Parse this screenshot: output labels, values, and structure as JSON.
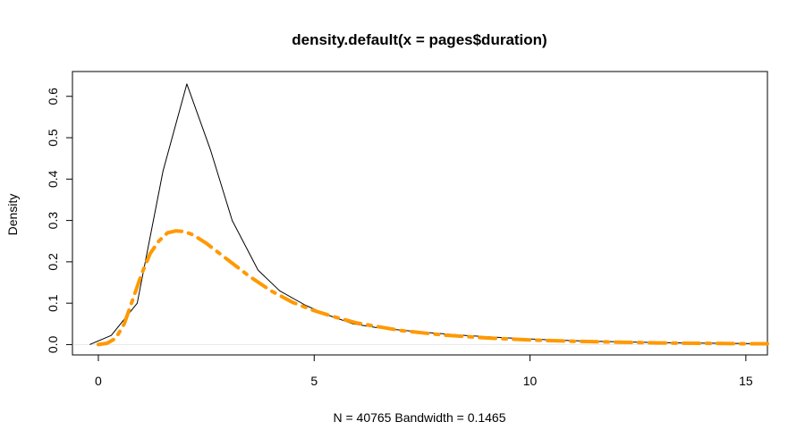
{
  "chart_data": {
    "type": "line",
    "title": "density.default(x = pages$duration)",
    "xlabel": "N = 40765   Bandwidth = 0.1465",
    "ylabel": "Density",
    "xlim": [
      -0.6,
      15.5
    ],
    "ylim": [
      -0.025,
      0.66
    ],
    "xticks": [
      0,
      5,
      10,
      15
    ],
    "yticks": [
      0.0,
      0.1,
      0.2,
      0.3,
      0.4,
      0.5,
      0.6
    ],
    "xtick_labels": [
      "0",
      "5",
      "10",
      "15"
    ],
    "ytick_labels": [
      "0.0",
      "0.1",
      "0.2",
      "0.3",
      "0.4",
      "0.5",
      "0.6"
    ],
    "grid": false,
    "legend": "none",
    "baseline": {
      "y": 0,
      "color": "#e6e6e6"
    },
    "series": [
      {
        "style": "solid",
        "color": "#000000",
        "width": 1,
        "x": [
          -0.2,
          0.3,
          0.9,
          1.5,
          2.05,
          2.6,
          3.1,
          3.7,
          4.2,
          4.8,
          5.3,
          5.9,
          6.5,
          7.5,
          8.5,
          9.5,
          10.5,
          11.5,
          12.5,
          13.5,
          14.5,
          15.5
        ],
        "y": [
          0.0,
          0.022,
          0.1,
          0.42,
          0.63,
          0.47,
          0.3,
          0.18,
          0.13,
          0.095,
          0.072,
          0.05,
          0.04,
          0.03,
          0.022,
          0.016,
          0.011,
          0.008,
          0.006,
          0.004,
          0.003,
          0.002
        ]
      },
      {
        "style": "dashdot",
        "color": "#ff9900",
        "width": 4,
        "x": [
          0.0,
          0.2,
          0.4,
          0.6,
          0.8,
          1.0,
          1.2,
          1.4,
          1.6,
          1.8,
          2.0,
          2.2,
          2.5,
          3.0,
          3.5,
          4.0,
          4.5,
          5.0,
          5.5,
          6.0,
          7.0,
          8.0,
          9.0,
          10.0,
          11.0,
          12.0,
          13.0,
          14.0,
          15.0,
          15.5
        ],
        "y": [
          0.0,
          0.003,
          0.015,
          0.05,
          0.11,
          0.17,
          0.22,
          0.25,
          0.27,
          0.275,
          0.273,
          0.265,
          0.245,
          0.205,
          0.165,
          0.13,
          0.102,
          0.082,
          0.066,
          0.052,
          0.034,
          0.023,
          0.016,
          0.011,
          0.008,
          0.006,
          0.004,
          0.003,
          0.002,
          0.002
        ]
      }
    ]
  }
}
